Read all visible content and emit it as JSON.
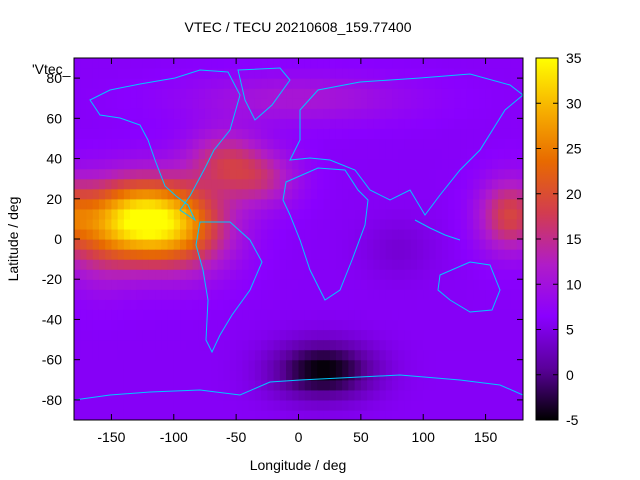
{
  "chart_data": {
    "type": "heatmap",
    "title": "VTEC / TECU 20210608_159.77400",
    "xlabel": "Longitude / deg",
    "ylabel": "Latitude / deg",
    "key_label": "'Vtec_",
    "xlim": [
      -180,
      180
    ],
    "ylim": [
      -90,
      90
    ],
    "x_ticks": [
      -150,
      -100,
      -50,
      0,
      50,
      100,
      150
    ],
    "y_ticks": [
      -80,
      -60,
      -40,
      -20,
      0,
      20,
      40,
      60,
      80
    ],
    "colorbar": {
      "range": [
        -5,
        35
      ],
      "ticks": [
        -5,
        0,
        5,
        10,
        15,
        20,
        25,
        30,
        35
      ],
      "palette": [
        "#000000",
        "#5a009a",
        "#8a00ff",
        "#b01cc8",
        "#d23c50",
        "#e86a00",
        "#f7b000",
        "#ffff00"
      ]
    },
    "features": [
      {
        "lon": -130,
        "lat": 10,
        "vtec": 32
      },
      {
        "lon": -60,
        "lat": 40,
        "vtec": 18
      },
      {
        "lon": 170,
        "lat": 10,
        "vtec": 20
      },
      {
        "lon": 20,
        "lat": -65,
        "vtec": -4
      },
      {
        "lon": 80,
        "lat": 0,
        "vtec": 4
      },
      {
        "lon": 0,
        "lat": 70,
        "vtec": 10
      }
    ],
    "grid": false,
    "legend": "colorbar-right"
  }
}
